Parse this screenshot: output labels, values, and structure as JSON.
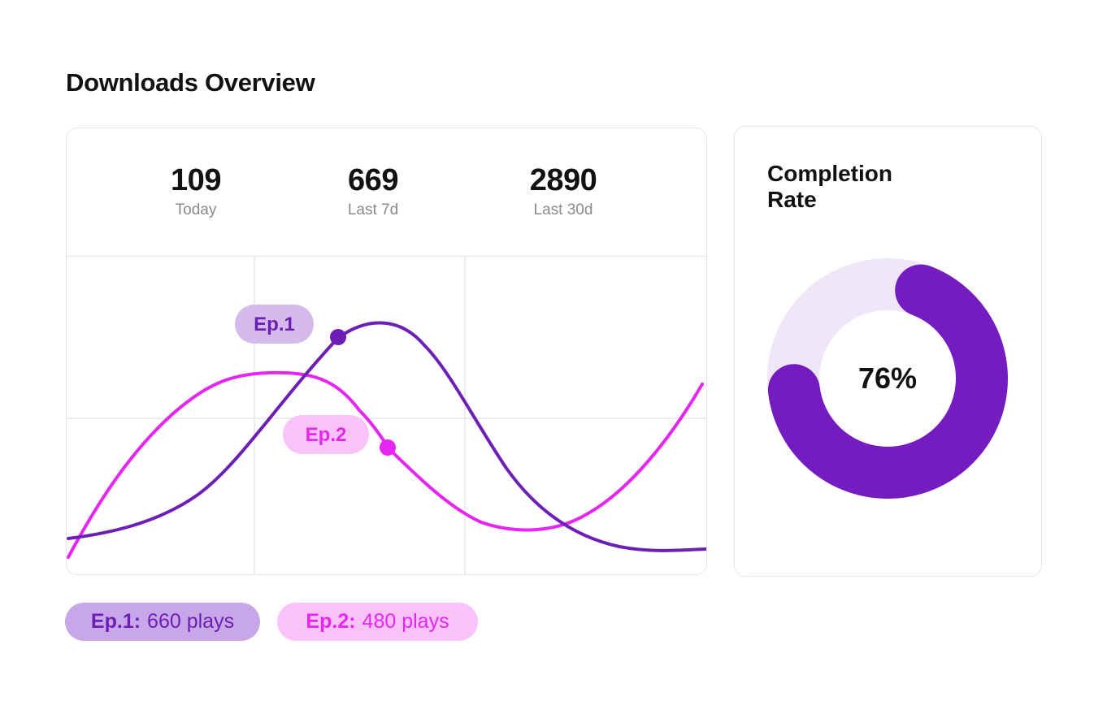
{
  "header": {
    "title": "Downloads Overview"
  },
  "stats": [
    {
      "value": "109",
      "label": "Today"
    },
    {
      "value": "669",
      "label": "Last 7d"
    },
    {
      "value": "2890",
      "label": "Last 30d"
    }
  ],
  "chart_data": {
    "type": "line",
    "grid": true,
    "series": [
      {
        "name": "Ep.1",
        "color": "#6d1fb5"
      },
      {
        "name": "Ep.2",
        "color": "#e626f0"
      }
    ]
  },
  "completion": {
    "title": "Completion Rate",
    "value_text": "76%",
    "fraction": 0.76,
    "fill_color": "#741cbf",
    "track_color": "#efe6f8"
  },
  "legend": [
    {
      "name": "Ep.1:",
      "text": "660 plays"
    },
    {
      "name": "Ep.2:",
      "text": "480 plays"
    }
  ]
}
